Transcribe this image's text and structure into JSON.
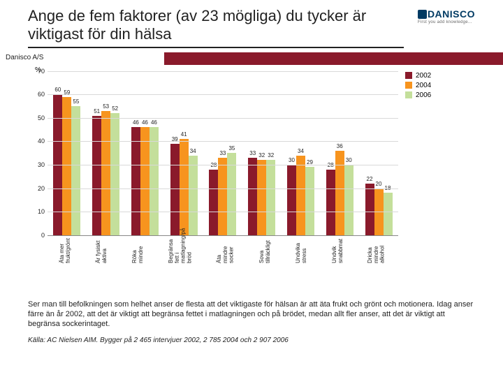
{
  "title": "Ange de fem faktorer (av 23 mögliga) du tycker är viktigast för din hälsa",
  "band_label": "Danisco A/S",
  "band_color": "#8a1a2b",
  "logo": {
    "brand": "DANISCO",
    "tag": "First you add knowledge..."
  },
  "chart": {
    "type": "bar",
    "ylabel": "%",
    "ylim": [
      0,
      70
    ],
    "ytick_step": 10,
    "grid_color": "#d9d9d9",
    "background_color": "#ffffff",
    "series": [
      {
        "name": "2002",
        "color": "#8a1a2b"
      },
      {
        "name": "2004",
        "color": "#f7941e"
      },
      {
        "name": "2006",
        "color": "#c4df9b"
      }
    ],
    "categories": [
      "Äta mer frukt/grönt",
      "Är fysiskt aktiva",
      "Röka mindre",
      "Begränsa fett i matlagning/på bröd",
      "Äta mindre socker",
      "Sova tillräckligt",
      "Undvika stress",
      "Undvik snabbmat",
      "Dricka mindre alkohol"
    ],
    "data": [
      [
        60,
        59,
        55
      ],
      [
        51,
        53,
        52
      ],
      [
        46,
        46,
        46
      ],
      [
        39,
        41,
        34
      ],
      [
        28,
        33,
        35
      ],
      [
        33,
        32,
        32
      ],
      [
        30,
        34,
        29
      ],
      [
        28,
        36,
        30
      ],
      [
        22,
        20,
        18
      ]
    ]
  },
  "body_text": "Ser man till befolkningen som helhet anser de flesta att det viktigaste för hälsan är att äta frukt och grönt och motionera. Idag anser färre än år 2002, att det är viktigt att begränsa fettet i matlagningen och på brödet, medan allt fler anser, att det är viktigt att begränsa sockerintaget.",
  "source": "Källa: AC Nielsen AIM. Bygger på 2 465 intervjuer 2002,  2 785 2004 och 2 907 2006"
}
